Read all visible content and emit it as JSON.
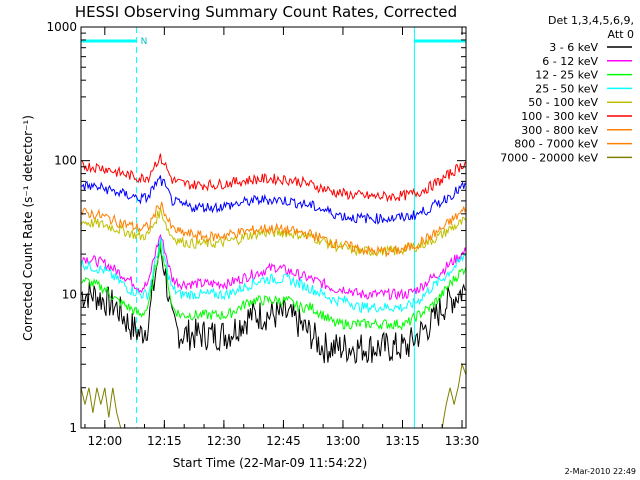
{
  "chart_data": {
    "type": "line",
    "title": "HESSI Observing Summary Count Rates, Corrected",
    "xlabel": "Start Time (22-Mar-09 11:54:22)",
    "ylabel": "Corrected Count Rate (s⁻¹ detector⁻¹)",
    "x_unit": "minutes since 11:54:22",
    "xlim": [
      0,
      97
    ],
    "ylim": [
      1,
      1000
    ],
    "yscale": "log",
    "x_ticks": [
      {
        "t": 6,
        "label": "12:00"
      },
      {
        "t": 21,
        "label": "12:15"
      },
      {
        "t": 36,
        "label": "12:30"
      },
      {
        "t": 51,
        "label": "12:45"
      },
      {
        "t": 66,
        "label": "13:00"
      },
      {
        "t": 81,
        "label": "13:15"
      },
      {
        "t": 96,
        "label": "13:30"
      }
    ],
    "y_ticks": [
      {
        "v": 1,
        "label": "1"
      },
      {
        "v": 10,
        "label": "10"
      },
      {
        "v": 100,
        "label": "100"
      },
      {
        "v": 1000,
        "label": "1000"
      }
    ],
    "legend_header": [
      "Det 1,3,4,5,6,9,",
      "Att 0"
    ],
    "legend_position": "right",
    "series": [
      {
        "name": "3 - 6 keV",
        "color": "#000000",
        "x": [
          0,
          3,
          6,
          9,
          12,
          15,
          17,
          18,
          19,
          20,
          21,
          22,
          23,
          25,
          28,
          31,
          34,
          37,
          40,
          43,
          46,
          49,
          52,
          55,
          58,
          61,
          64,
          67,
          70,
          73,
          76,
          79,
          82,
          85,
          88,
          91,
          93,
          95,
          97
        ],
        "y": [
          10,
          10,
          9,
          8,
          6,
          5,
          6,
          10,
          16,
          22,
          16,
          10,
          6,
          5,
          5,
          5,
          5,
          5,
          6,
          7,
          7,
          7,
          7,
          6,
          5,
          4,
          4,
          4,
          4,
          4,
          4,
          4,
          4,
          5,
          6,
          8,
          9,
          10,
          11
        ]
      },
      {
        "name": "6 - 12 keV",
        "color": "#ff00ff",
        "x": [
          0,
          3,
          6,
          9,
          12,
          15,
          17,
          18,
          19,
          20,
          21,
          22,
          23,
          25,
          28,
          31,
          34,
          37,
          40,
          43,
          46,
          49,
          52,
          55,
          58,
          61,
          64,
          67,
          70,
          73,
          76,
          79,
          82,
          85,
          88,
          91,
          93,
          95,
          97
        ],
        "y": [
          19,
          18,
          17,
          15,
          13,
          11,
          12,
          17,
          22,
          28,
          22,
          17,
          13,
          12,
          12,
          12,
          12,
          12,
          13,
          14,
          15,
          16,
          15,
          14,
          13,
          12,
          11,
          11,
          10,
          10,
          10,
          10,
          10,
          11,
          13,
          15,
          17,
          19,
          21
        ]
      },
      {
        "name": "12 - 25 keV",
        "color": "#00ff00",
        "x": [
          0,
          3,
          6,
          9,
          12,
          15,
          17,
          18,
          19,
          20,
          21,
          22,
          23,
          25,
          28,
          31,
          34,
          37,
          40,
          43,
          46,
          49,
          52,
          55,
          58,
          61,
          64,
          67,
          70,
          73,
          76,
          79,
          82,
          85,
          88,
          91,
          93,
          95,
          97
        ],
        "y": [
          13,
          12,
          11,
          9,
          8,
          7,
          8,
          12,
          17,
          24,
          17,
          12,
          8,
          7,
          7,
          7,
          7,
          7,
          8,
          9,
          9,
          9,
          9,
          8,
          8,
          7,
          6,
          6,
          6,
          6,
          6,
          6,
          6,
          7,
          8,
          10,
          12,
          14,
          16
        ]
      },
      {
        "name": "25 - 50 keV",
        "color": "#00ffff",
        "x": [
          0,
          3,
          6,
          9,
          12,
          15,
          17,
          18,
          19,
          20,
          21,
          22,
          23,
          25,
          28,
          31,
          34,
          37,
          40,
          43,
          46,
          49,
          52,
          55,
          58,
          61,
          64,
          67,
          70,
          73,
          76,
          79,
          82,
          85,
          88,
          91,
          93,
          95,
          97
        ],
        "y": [
          17,
          16,
          15,
          13,
          11,
          10,
          10,
          14,
          19,
          25,
          19,
          14,
          11,
          10,
          10,
          10,
          10,
          10,
          11,
          12,
          13,
          13,
          13,
          12,
          11,
          10,
          9,
          9,
          8,
          8,
          8,
          8,
          8,
          9,
          11,
          13,
          15,
          17,
          20
        ]
      },
      {
        "name": "50 - 100 keV",
        "color": "#c0c000",
        "x": [
          0,
          3,
          6,
          9,
          12,
          15,
          17,
          18,
          19,
          20,
          21,
          22,
          23,
          25,
          28,
          31,
          34,
          37,
          40,
          43,
          46,
          49,
          52,
          55,
          58,
          61,
          64,
          67,
          70,
          73,
          76,
          79,
          82,
          85,
          88,
          91,
          93,
          95,
          97
        ],
        "y": [
          35,
          34,
          33,
          31,
          29,
          27,
          28,
          32,
          37,
          42,
          37,
          30,
          27,
          25,
          24,
          24,
          24,
          25,
          26,
          28,
          29,
          29,
          29,
          28,
          27,
          25,
          23,
          22,
          21,
          21,
          21,
          21,
          22,
          23,
          25,
          28,
          31,
          33,
          36
        ]
      },
      {
        "name": "100 - 300 keV",
        "color": "#ff0000",
        "x": [
          0,
          3,
          6,
          9,
          12,
          15,
          17,
          18,
          19,
          20,
          21,
          22,
          23,
          25,
          28,
          31,
          34,
          37,
          40,
          43,
          46,
          49,
          52,
          55,
          58,
          61,
          64,
          67,
          70,
          73,
          76,
          79,
          82,
          85,
          88,
          91,
          93,
          95,
          97
        ],
        "y": [
          92,
          90,
          88,
          82,
          78,
          74,
          76,
          88,
          98,
          104,
          96,
          82,
          72,
          68,
          66,
          66,
          66,
          68,
          70,
          72,
          73,
          73,
          72,
          70,
          66,
          62,
          58,
          56,
          55,
          54,
          54,
          54,
          55,
          58,
          64,
          72,
          80,
          88,
          98
        ]
      },
      {
        "name": "300 - 800 keV",
        "color": "#ff8000",
        "x": [
          0,
          3,
          6,
          9,
          12,
          15,
          17,
          18,
          19,
          20,
          21,
          22,
          23,
          25,
          28,
          31,
          34,
          37,
          40,
          43,
          46,
          49,
          52,
          55,
          58,
          61,
          64,
          67,
          70,
          73,
          76,
          79,
          82,
          85,
          88,
          91,
          93,
          95,
          97
        ],
        "y": [
          41,
          40,
          38,
          35,
          33,
          31,
          32,
          37,
          42,
          48,
          42,
          35,
          31,
          29,
          28,
          27,
          27,
          28,
          29,
          30,
          31,
          31,
          30,
          29,
          28,
          26,
          24,
          23,
          22,
          21,
          21,
          21,
          22,
          24,
          27,
          31,
          35,
          39,
          44
        ]
      },
      {
        "name": "800 - 7000 keV",
        "color": "#ff8000",
        "x": [
          0,
          97
        ],
        "y": [
          null,
          null
        ]
      },
      {
        "name": "7000 - 20000 keV",
        "color": "#808000",
        "x": [
          0,
          1,
          2,
          3,
          4,
          5,
          6,
          7,
          8,
          9,
          10,
          31,
          32,
          33,
          34,
          35,
          36,
          37,
          38,
          39,
          40,
          41,
          42,
          43,
          44,
          45,
          46,
          47,
          48,
          49,
          50,
          51,
          52,
          53,
          54,
          55,
          56,
          57,
          58,
          59,
          60,
          61,
          62,
          63,
          64,
          65,
          66,
          67,
          68,
          69,
          70,
          71,
          72,
          73,
          74,
          75,
          76,
          77,
          78,
          79,
          80,
          81,
          82,
          83,
          84,
          85,
          86,
          87,
          88,
          89,
          90,
          91,
          92,
          93,
          94,
          95,
          96,
          97
        ],
        "y": [
          2,
          1.5,
          2,
          1.3,
          2,
          1.5,
          2,
          1.2,
          2,
          1.3,
          1,
          1,
          1,
          1,
          1,
          1,
          1,
          1,
          1,
          1,
          1,
          1,
          1,
          1,
          1,
          1,
          1,
          1,
          1,
          1,
          1,
          1,
          1,
          1,
          1,
          1,
          1,
          1,
          1,
          1,
          1,
          1,
          1,
          1,
          1,
          1,
          1,
          1,
          1,
          1,
          1,
          1,
          1,
          1,
          1,
          1,
          1,
          1,
          1,
          1,
          1,
          1,
          1,
          1,
          1,
          1,
          1,
          1,
          1,
          1,
          1,
          1,
          1.5,
          2,
          1.5,
          2,
          3,
          2.5
        ]
      },
      {
        "name": "",
        "color": "#0000ff",
        "x": [
          0,
          3,
          6,
          9,
          12,
          15,
          17,
          18,
          19,
          20,
          21,
          22,
          23,
          25,
          28,
          31,
          34,
          37,
          40,
          43,
          46,
          49,
          52,
          55,
          58,
          61,
          64,
          67,
          70,
          73,
          76,
          79,
          82,
          85,
          88,
          91,
          93,
          95,
          97
        ],
        "y": [
          65,
          64,
          62,
          58,
          55,
          52,
          53,
          62,
          68,
          72,
          66,
          57,
          50,
          47,
          45,
          45,
          45,
          46,
          48,
          50,
          51,
          51,
          50,
          48,
          46,
          43,
          40,
          38,
          37,
          37,
          37,
          37,
          38,
          40,
          44,
          50,
          55,
          60,
          66
        ]
      }
    ],
    "vertical_lines": [
      {
        "t": 0,
        "style": "solid",
        "color": "#00ffff"
      },
      {
        "t": 14,
        "style": "dashed",
        "color": "#00ffff"
      },
      {
        "t": 84,
        "style": "solid",
        "color": "#00ffff"
      },
      {
        "t": 97,
        "style": "dashed",
        "color": "#00ffff"
      }
    ],
    "top_bars": [
      {
        "from": 0,
        "to": 14,
        "color": "#00ffff"
      },
      {
        "from": 84,
        "to": 97,
        "color": "#00ffff"
      }
    ],
    "annotation": "N",
    "footer": "2-Mar-2010 22:49"
  }
}
